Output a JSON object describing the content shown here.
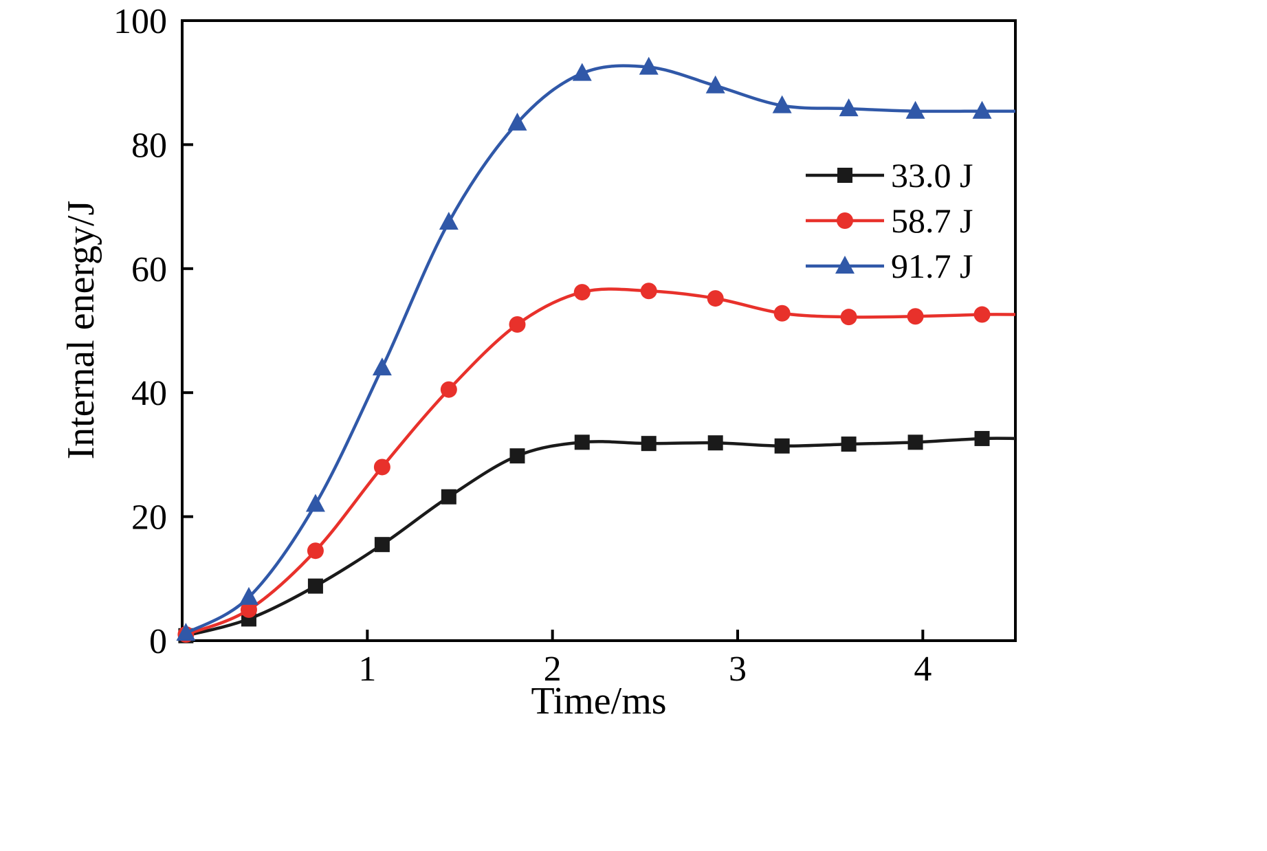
{
  "chart_data": {
    "type": "line",
    "title": "",
    "xlabel": "Time/ms",
    "ylabel": "Internal energy/J",
    "xlim": [
      0,
      4.5
    ],
    "ylim": [
      0,
      100
    ],
    "xticks": [
      1,
      2,
      3,
      4
    ],
    "yticks": [
      0,
      20,
      40,
      60,
      80,
      100
    ],
    "grid": false,
    "legend_position": "upper right",
    "background_color": "#ffffff",
    "axis_color": "#000000",
    "x": [
      0.02,
      0.36,
      0.72,
      1.08,
      1.44,
      1.81,
      2.16,
      2.52,
      2.88,
      3.24,
      3.6,
      3.96,
      4.32
    ],
    "series": [
      {
        "name": "33.0 J",
        "color": "#1a1a1a",
        "marker": "square",
        "values": [
          0.8,
          3.5,
          8.8,
          15.5,
          23.2,
          29.8,
          32.0,
          31.8,
          31.9,
          31.4,
          31.7,
          32.0,
          32.6
        ]
      },
      {
        "name": "58.7 J",
        "color": "#e8312b",
        "marker": "circle",
        "values": [
          1.0,
          5.0,
          14.5,
          28.0,
          40.5,
          51.0,
          56.2,
          56.4,
          55.2,
          52.8,
          52.2,
          52.3,
          52.6
        ]
      },
      {
        "name": "91.7 J",
        "color": "#3058a8",
        "marker": "triangle",
        "values": [
          1.2,
          7.0,
          22.0,
          44.0,
          67.5,
          83.5,
          91.5,
          92.5,
          89.5,
          86.3,
          85.8,
          85.4,
          85.4
        ]
      }
    ]
  }
}
